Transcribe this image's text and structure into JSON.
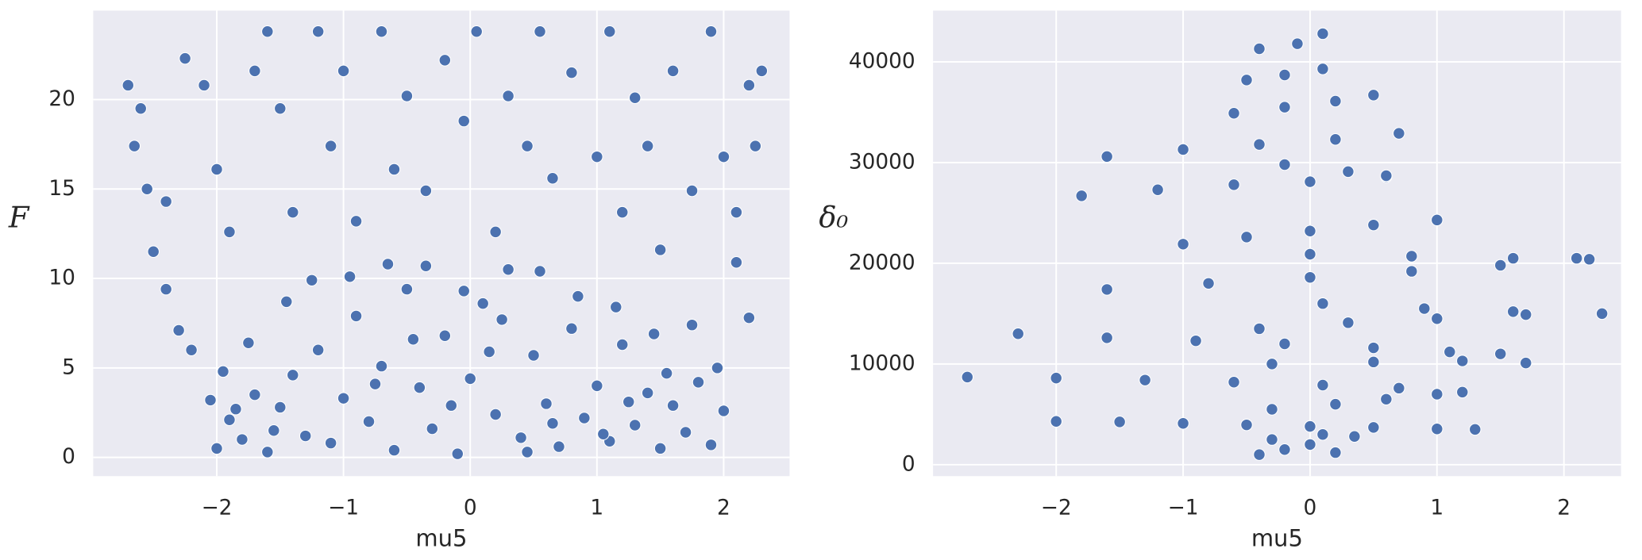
{
  "chart_data": [
    {
      "type": "scatter",
      "xlabel": "mu5",
      "ylabel": "F",
      "color": "#4c72b0",
      "grid": true,
      "xlim": [
        -2.975,
        2.52
      ],
      "ylim": [
        -1.05,
        24.97
      ],
      "xticks": [
        {
          "value": -2,
          "label": "−2"
        },
        {
          "value": -1,
          "label": "−1"
        },
        0,
        1,
        2
      ],
      "yticks": [
        0,
        5,
        10,
        15,
        20
      ],
      "x": [
        -2.0,
        -1.9,
        -1.8,
        -1.7,
        -1.6,
        -1.5,
        -1.4,
        -1.3,
        -1.2,
        -1.1,
        -1.0,
        -0.9,
        -0.8,
        -0.7,
        -0.6,
        -0.5,
        -0.4,
        -0.3,
        -0.2,
        -0.1,
        0.0,
        0.1,
        0.2,
        0.3,
        0.4,
        0.5,
        0.6,
        0.7,
        0.8,
        0.9,
        1.0,
        1.1,
        1.2,
        1.3,
        1.4,
        1.5,
        1.6,
        1.7,
        1.8,
        1.9,
        2.0,
        -2.05,
        -1.95,
        -1.75,
        -1.45,
        -1.25,
        -0.95,
        -0.65,
        -0.35,
        -0.05,
        0.25,
        0.55,
        0.85,
        1.15,
        1.45,
        1.75,
        1.95,
        -2.2,
        -2.3,
        -0.15,
        0.45,
        -1.55,
        1.25,
        -0.75,
        0.65,
        1.55,
        -1.85,
        0.15,
        -0.45,
        1.05,
        -2.7,
        -2.65,
        -2.6,
        -2.55,
        -2.4,
        -2.25,
        -2.1,
        -2.0,
        -1.9,
        -1.7,
        -1.6,
        -1.5,
        -1.4,
        -1.2,
        -1.1,
        -1.0,
        -0.9,
        -0.7,
        -0.6,
        -0.5,
        -0.35,
        -0.2,
        -0.05,
        0.05,
        0.2,
        0.3,
        0.45,
        0.55,
        0.65,
        0.8,
        1.0,
        1.1,
        1.2,
        1.3,
        1.4,
        1.5,
        1.6,
        1.75,
        1.9,
        2.0,
        2.1,
        2.2,
        2.25,
        2.3,
        2.2,
        2.1,
        -2.5,
        -2.4
      ],
      "values": [
        0.5,
        2.1,
        1.0,
        3.5,
        0.3,
        2.8,
        4.6,
        1.2,
        6.0,
        0.8,
        3.3,
        7.9,
        2.0,
        5.1,
        0.4,
        9.4,
        3.9,
        1.6,
        6.8,
        0.2,
        4.4,
        8.6,
        2.4,
        10.5,
        1.1,
        5.7,
        3.0,
        0.6,
        7.2,
        2.2,
        4.0,
        0.9,
        6.3,
        1.8,
        3.6,
        0.5,
        2.9,
        1.4,
        4.2,
        0.7,
        2.6,
        3.2,
        4.8,
        6.4,
        8.7,
        9.9,
        10.1,
        10.8,
        10.7,
        9.3,
        7.7,
        10.4,
        9.0,
        8.4,
        6.9,
        7.4,
        5.0,
        6.0,
        7.1,
        2.9,
        0.3,
        1.5,
        3.1,
        4.1,
        1.9,
        4.7,
        2.7,
        5.9,
        6.6,
        1.3,
        20.8,
        17.4,
        19.5,
        15.0,
        14.3,
        22.3,
        20.8,
        16.1,
        12.6,
        21.6,
        23.8,
        19.5,
        13.7,
        23.8,
        17.4,
        21.6,
        13.2,
        23.8,
        16.1,
        20.2,
        14.9,
        22.2,
        18.8,
        23.8,
        12.6,
        20.2,
        17.4,
        23.8,
        15.6,
        21.5,
        16.8,
        23.8,
        13.7,
        20.1,
        17.4,
        11.6,
        21.6,
        14.9,
        23.8,
        16.8,
        13.7,
        20.8,
        17.4,
        21.6,
        7.8,
        10.9,
        11.5,
        9.4
      ]
    },
    {
      "type": "scatter",
      "xlabel": "mu5",
      "ylabel": "δ₀",
      "color": "#4c72b0",
      "grid": true,
      "xlim": [
        -2.97,
        2.45
      ],
      "ylim": [
        -1140,
        45090
      ],
      "xticks": [
        {
          "value": -2,
          "label": "−2"
        },
        {
          "value": -1,
          "label": "−1"
        },
        0,
        1,
        2
      ],
      "yticks": [
        0,
        10000,
        20000,
        30000,
        40000
      ],
      "x": [
        -0.4,
        -0.2,
        0.0,
        0.2,
        0.35,
        -0.3,
        0.1,
        -2.0,
        -1.5,
        -1.0,
        -0.5,
        0.0,
        0.5,
        1.0,
        1.3,
        -0.3,
        0.2,
        0.6,
        1.0,
        -2.7,
        -2.0,
        -1.3,
        -0.6,
        0.1,
        0.7,
        1.2,
        -0.3,
        0.5,
        1.2,
        1.7,
        -2.3,
        -1.6,
        -0.9,
        -0.2,
        0.5,
        1.1,
        1.5,
        -0.4,
        0.3,
        1.0,
        1.7,
        2.3,
        -1.6,
        -0.8,
        0.0,
        0.8,
        1.5,
        2.2,
        -1.0,
        -0.5,
        0.0,
        0.5,
        1.0,
        -1.8,
        -1.2,
        -0.6,
        0.0,
        0.6,
        -1.6,
        -1.0,
        -0.4,
        0.2,
        0.7,
        -0.6,
        -0.2,
        0.2,
        0.5,
        -0.5,
        -0.2,
        0.1,
        -0.4,
        -0.1,
        0.1,
        0.1,
        0.9,
        1.6,
        -0.2,
        0.3,
        0.6,
        0.0,
        0.8,
        1.6,
        2.1
      ],
      "values": [
        1000,
        1500,
        2000,
        1200,
        2800,
        2500,
        3000,
        4300,
        4250,
        4100,
        3950,
        3800,
        3700,
        3550,
        3500,
        5500,
        6000,
        6500,
        7000,
        8700,
        8600,
        8400,
        8200,
        7900,
        7600,
        7200,
        10000,
        10200,
        10300,
        10100,
        13000,
        12600,
        12300,
        12000,
        11600,
        11200,
        11000,
        13500,
        14100,
        14500,
        14900,
        15000,
        17400,
        18000,
        18600,
        19200,
        19800,
        20400,
        21900,
        22600,
        23200,
        23800,
        24300,
        26700,
        27300,
        27800,
        28100,
        28600,
        30600,
        31300,
        31800,
        32300,
        32900,
        34900,
        35500,
        36100,
        36700,
        38200,
        38700,
        39300,
        41300,
        41800,
        42800,
        16000,
        15500,
        15200,
        29800,
        29100,
        28700,
        20900,
        20700,
        20500,
        20500
      ]
    }
  ]
}
